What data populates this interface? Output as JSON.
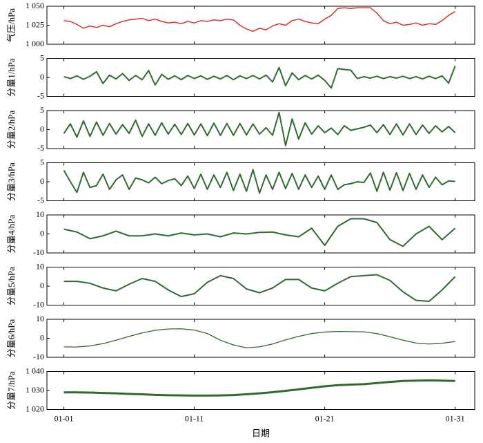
{
  "chart_data": [
    {
      "type": "line",
      "ylabel": "气压/hPa",
      "xlim": [
        -0.3,
        32.5
      ],
      "ylim": [
        1000,
        1050
      ],
      "yticks": [
        {
          "value": 1000,
          "label": "1 000"
        },
        {
          "value": 1025,
          "label": "1 025"
        },
        {
          "value": 1050,
          "label": "1 050"
        }
      ],
      "x": [
        1,
        1.5,
        2,
        2.5,
        3,
        3.5,
        4,
        4.5,
        5,
        5.5,
        6,
        6.5,
        7,
        7.5,
        8,
        8.5,
        9,
        9.5,
        10,
        10.5,
        11,
        11.5,
        12,
        12.5,
        13,
        13.5,
        14,
        14.5,
        15,
        15.5,
        16,
        16.5,
        17,
        17.5,
        18,
        18.5,
        19,
        19.5,
        20,
        20.5,
        21,
        21.5,
        22,
        22.5,
        23,
        23.5,
        24,
        24.5,
        25,
        25.5,
        26,
        26.5,
        27,
        27.5,
        28,
        28.5,
        29,
        29.5,
        30,
        30.5,
        31
      ],
      "series": [
        {
          "color": "#e0302a",
          "values": [
            1031,
            1030,
            1026,
            1021,
            1024,
            1022,
            1025,
            1023,
            1027,
            1030,
            1032,
            1033,
            1034,
            1031,
            1033,
            1030,
            1028,
            1029,
            1027,
            1030,
            1028,
            1031,
            1030,
            1032,
            1031,
            1033,
            1032,
            1025,
            1020,
            1017,
            1021,
            1019,
            1024,
            1027,
            1025,
            1031,
            1033,
            1030,
            1028,
            1027,
            1033,
            1038,
            1047,
            1048,
            1047,
            1048,
            1048,
            1048,
            1041,
            1031,
            1027,
            1029,
            1025,
            1026,
            1028,
            1025,
            1027,
            1026,
            1031,
            1038,
            1043
          ]
        }
      ]
    },
    {
      "type": "line",
      "ylabel": "分量1/hPa",
      "xlim": [
        -0.3,
        32.5
      ],
      "ylim": [
        -5,
        5
      ],
      "yticks": [
        -5,
        0,
        5
      ],
      "x": [
        1,
        1.5,
        2,
        2.5,
        3,
        3.5,
        4,
        4.5,
        5,
        5.5,
        6,
        6.5,
        7,
        7.5,
        8,
        8.5,
        9,
        9.5,
        10,
        10.5,
        11,
        11.5,
        12,
        12.5,
        13,
        13.5,
        14,
        14.5,
        15,
        15.5,
        16,
        16.5,
        17,
        17.5,
        18,
        18.5,
        19,
        19.5,
        20,
        20.5,
        21,
        21.5,
        22,
        22.5,
        23,
        23.5,
        24,
        24.5,
        25,
        25.5,
        26,
        26.5,
        27,
        27.5,
        28,
        28.5,
        29,
        29.5,
        30,
        30.5,
        31
      ],
      "series": [
        {
          "color": "#2e6b2e",
          "values": [
            0.2,
            -0.3,
            0.4,
            -0.5,
            0.3,
            1.5,
            -1.6,
            0.6,
            -0.4,
            1.0,
            -0.8,
            0.5,
            -0.6,
            1.8,
            -2.0,
            0.8,
            -0.5,
            0.4,
            -0.6,
            0.5,
            -0.3,
            0.4,
            -0.5,
            0.3,
            -0.4,
            0.5,
            -0.6,
            0.4,
            -0.3,
            0.5,
            -0.4,
            0.6,
            -1.2,
            2.6,
            -2.2,
            1.2,
            -0.6,
            0.5,
            -0.4,
            0.6,
            -0.8,
            -2.8,
            2.3,
            2.1,
            1.9,
            -0.3,
            0.2,
            -0.2,
            0.3,
            -0.3,
            0.2,
            -0.2,
            0.3,
            -0.3,
            0.2,
            -0.4,
            0.3,
            -0.3,
            0.4,
            -1.5,
            3.0
          ]
        }
      ]
    },
    {
      "type": "line",
      "ylabel": "分量2/hPa",
      "xlim": [
        -0.3,
        32.5
      ],
      "ylim": [
        -5,
        5
      ],
      "yticks": [
        -5,
        0,
        5
      ],
      "x": [
        1,
        1.5,
        2,
        2.5,
        3,
        3.5,
        4,
        4.5,
        5,
        5.5,
        6,
        6.5,
        7,
        7.5,
        8,
        8.5,
        9,
        9.5,
        10,
        10.5,
        11,
        11.5,
        12,
        12.5,
        13,
        13.5,
        14,
        14.5,
        15,
        15.5,
        16,
        16.5,
        17,
        17.5,
        18,
        18.5,
        19,
        19.5,
        20,
        20.5,
        21,
        21.5,
        22,
        22.5,
        23,
        23.5,
        24,
        24.5,
        25,
        25.5,
        26,
        26.5,
        27,
        27.5,
        28,
        28.5,
        29,
        29.5,
        30,
        30.5,
        31
      ],
      "series": [
        {
          "color": "#2e6b2e",
          "values": [
            -1,
            1.5,
            -2,
            2.3,
            -1.8,
            2,
            -1.5,
            1.6,
            -1.2,
            1.3,
            -1,
            2.5,
            -1.8,
            1.5,
            -1.5,
            1.8,
            -1.2,
            1.4,
            -1.3,
            1.6,
            -1.4,
            1.5,
            -1.6,
            1.7,
            -1.5,
            1.6,
            -1.5,
            1.6,
            -1.4,
            1.5,
            -1.2,
            0.5,
            -1.5,
            4.5,
            -4.2,
            2.8,
            -2.5,
            1.8,
            -1.2,
            1.0,
            -0.8,
            0.4,
            -1.3,
            1.0,
            -0.2,
            0.2,
            0.6,
            1.2,
            -0.8,
            1.3,
            -1.3,
            1.5,
            -1.4,
            1.5,
            -1.3,
            1.2,
            -1.0,
            1.0,
            -0.6,
            0.8,
            -0.8
          ]
        }
      ]
    },
    {
      "type": "line",
      "ylabel": "分量3/hPa",
      "xlim": [
        -0.3,
        32.5
      ],
      "ylim": [
        -5,
        5
      ],
      "yticks": [
        -5,
        0,
        5
      ],
      "x": [
        1,
        1.5,
        2,
        2.5,
        3,
        3.5,
        4,
        4.5,
        5,
        5.5,
        6,
        6.5,
        7,
        7.5,
        8,
        8.5,
        9,
        9.5,
        10,
        10.5,
        11,
        11.5,
        12,
        12.5,
        13,
        13.5,
        14,
        14.5,
        15,
        15.5,
        16,
        16.5,
        17,
        17.5,
        18,
        18.5,
        19,
        19.5,
        20,
        20.5,
        21,
        21.5,
        22,
        22.5,
        23,
        23.5,
        24,
        24.5,
        25,
        25.5,
        26,
        26.5,
        27,
        27.5,
        28,
        28.5,
        29,
        29.5,
        30,
        30.5,
        31
      ],
      "series": [
        {
          "color": "#2e6b2e",
          "values": [
            3,
            0,
            -2.8,
            2.5,
            -1.5,
            -1,
            2,
            -2,
            0.5,
            1.8,
            -2,
            1,
            0.5,
            -0.3,
            1.2,
            -0.5,
            0.3,
            0.8,
            -1,
            1.5,
            -1.8,
            2,
            -2,
            1.8,
            -1.5,
            2.5,
            -2.3,
            2,
            -2.5,
            3.2,
            -3,
            1.8,
            -2,
            2.5,
            -1.8,
            2.2,
            -2,
            1.8,
            -1.5,
            1.5,
            -2,
            1.8,
            -2,
            -0.8,
            -0.5,
            0,
            -0.2,
            2.3,
            -2.5,
            2.5,
            -2.2,
            2.4,
            -2.3,
            2.2,
            -2.0,
            1.8,
            -1.5,
            1.2,
            -0.8,
            0.2,
            0.1
          ]
        }
      ]
    },
    {
      "type": "line",
      "ylabel": "分量4/hPa",
      "xlim": [
        -0.3,
        32.5
      ],
      "ylim": [
        -10,
        10
      ],
      "yticks": [
        -10,
        0,
        10
      ],
      "x": [
        1,
        2,
        3,
        4,
        5,
        6,
        7,
        8,
        9,
        10,
        11,
        12,
        13,
        14,
        15,
        16,
        17,
        18,
        19,
        20,
        21,
        22,
        23,
        24,
        25,
        26,
        27,
        28,
        29,
        30,
        31
      ],
      "series": [
        {
          "color": "#2e6b2e",
          "values": [
            2.5,
            1,
            -2.5,
            -1,
            1.5,
            -1,
            -1,
            0,
            -1,
            0.5,
            -0.5,
            0,
            -1.5,
            0.5,
            0,
            0.8,
            1,
            -0.5,
            -1.5,
            3,
            -6,
            4,
            8,
            8,
            6,
            -3,
            -6.5,
            0,
            4,
            -3,
            3
          ]
        }
      ]
    },
    {
      "type": "line",
      "ylabel": "分量5/hPa",
      "xlim": [
        -0.3,
        32.5
      ],
      "ylim": [
        -10,
        10
      ],
      "yticks": [
        -10,
        0,
        10
      ],
      "x": [
        1,
        2,
        3,
        4,
        5,
        6,
        7,
        8,
        9,
        10,
        11,
        12,
        13,
        14,
        15,
        16,
        17,
        18,
        19,
        20,
        21,
        22,
        23,
        24,
        25,
        26,
        27,
        28,
        29,
        30,
        31
      ],
      "series": [
        {
          "color": "#2e6b2e",
          "values": [
            2.5,
            2.5,
            1.5,
            -1,
            -2.5,
            1,
            4,
            2.5,
            -2,
            -5.5,
            -4,
            2,
            5.5,
            4,
            -1.5,
            -3.5,
            -1,
            3.5,
            3.5,
            -1,
            -2.5,
            1.5,
            5,
            5.5,
            6,
            3,
            -3,
            -7.5,
            -8,
            -2,
            5
          ]
        }
      ]
    },
    {
      "type": "line",
      "ylabel": "分量6/hPa",
      "xlim": [
        -0.3,
        32.5
      ],
      "ylim": [
        -10,
        10
      ],
      "yticks": [
        -10,
        0,
        10
      ],
      "x": [
        1,
        2,
        3,
        4,
        5,
        6,
        7,
        8,
        9,
        10,
        11,
        12,
        13,
        14,
        15,
        16,
        17,
        18,
        19,
        20,
        21,
        22,
        23,
        24,
        25,
        26,
        27,
        28,
        29,
        30,
        31
      ],
      "series": [
        {
          "color": "#2e6b2e",
          "values": [
            -4.5,
            -4.6,
            -4,
            -2.8,
            -1,
            1,
            2.8,
            4.2,
            4.9,
            5,
            4.3,
            2.5,
            -1,
            -3.5,
            -5,
            -4.5,
            -3,
            -0.8,
            1,
            2.5,
            3.3,
            3.6,
            3.5,
            3.4,
            2.5,
            0.8,
            -1,
            -2.5,
            -3,
            -2.6,
            -1.7
          ]
        }
      ]
    },
    {
      "type": "line",
      "ylabel": "分量7/hPa",
      "xlabel": "日期",
      "xlim": [
        -0.3,
        32.5
      ],
      "ylim": [
        1020,
        1040
      ],
      "yticks": [
        {
          "value": 1020,
          "label": "1 020"
        },
        {
          "value": 1030,
          "label": "1 030"
        },
        {
          "value": 1040,
          "label": "1 040"
        }
      ],
      "xticks": [
        {
          "value": 1,
          "label": "01-01"
        },
        {
          "value": 11,
          "label": "01-11"
        },
        {
          "value": 21,
          "label": "01-21"
        },
        {
          "value": 31,
          "label": "01-31"
        }
      ],
      "x": [
        1,
        2,
        3,
        4,
        5,
        6,
        7,
        8,
        9,
        10,
        11,
        12,
        13,
        14,
        15,
        16,
        17,
        18,
        19,
        20,
        21,
        22,
        23,
        24,
        25,
        26,
        27,
        28,
        29,
        30,
        31
      ],
      "series": [
        {
          "color": "#2e6b2e",
          "values": [
            1029,
            1029,
            1028.9,
            1028.7,
            1028.5,
            1028.2,
            1028,
            1027.7,
            1027.5,
            1027.4,
            1027.3,
            1027.3,
            1027.4,
            1027.6,
            1028,
            1028.5,
            1029.1,
            1029.8,
            1030.6,
            1031.4,
            1032.2,
            1032.8,
            1033.1,
            1033.3,
            1033.9,
            1034.5,
            1035,
            1035.2,
            1035.3,
            1035.2,
            1035
          ]
        }
      ]
    }
  ]
}
